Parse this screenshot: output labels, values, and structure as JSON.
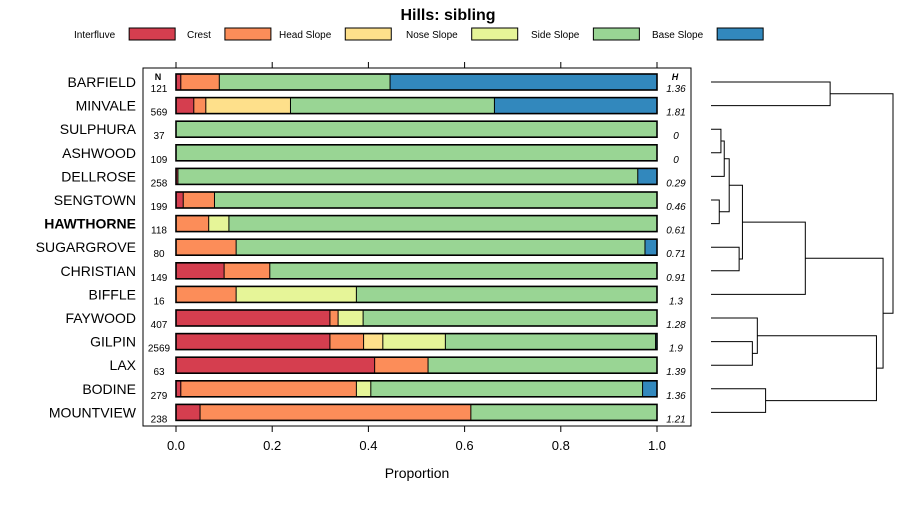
{
  "chart_data": {
    "type": "bar",
    "orientation": "horizontal",
    "stacked": true,
    "title": "Hills: sibling",
    "xlabel": "Proportion",
    "ylabel": "",
    "xlim": [
      0,
      1
    ],
    "xticks": [
      "0.0",
      "0.2",
      "0.4",
      "0.6",
      "0.8",
      "1.0"
    ],
    "n_header": "N",
    "h_header": "H",
    "highlight": "HAWTHORNE",
    "legend_position": "top",
    "series": [
      {
        "name": "Interfluve",
        "color": "#d53e4f"
      },
      {
        "name": "Crest",
        "color": "#fc8d59"
      },
      {
        "name": "Head Slope",
        "color": "#fee08b"
      },
      {
        "name": "Nose Slope",
        "color": "#e6f598"
      },
      {
        "name": "Side Slope",
        "color": "#99d594"
      },
      {
        "name": "Base Slope",
        "color": "#3288bd"
      }
    ],
    "rows": [
      {
        "name": "BARFIELD",
        "n": "121",
        "h": "1.36",
        "values": [
          0.01,
          0.08,
          0.0,
          0.0,
          0.355,
          0.555
        ]
      },
      {
        "name": "MINVALE",
        "n": "569",
        "h": "1.81",
        "values": [
          0.037,
          0.025,
          0.176,
          0.0,
          0.424,
          0.338
        ]
      },
      {
        "name": "SULPHURA",
        "n": "37",
        "h": "0",
        "values": [
          0.0,
          0.0,
          0.0,
          0.0,
          1.0,
          0.0
        ]
      },
      {
        "name": "ASHWOOD",
        "n": "109",
        "h": "0",
        "values": [
          0.0,
          0.0,
          0.0,
          0.0,
          1.0,
          0.0
        ]
      },
      {
        "name": "DELLROSE",
        "n": "258",
        "h": "0.29",
        "values": [
          0.004,
          0.0,
          0.0,
          0.0,
          0.956,
          0.04
        ]
      },
      {
        "name": "SENGTOWN",
        "n": "199",
        "h": "0.46",
        "values": [
          0.015,
          0.065,
          0.0,
          0.0,
          0.92,
          0.0
        ]
      },
      {
        "name": "HAWTHORNE",
        "n": "118",
        "h": "0.61",
        "values": [
          0.0,
          0.068,
          0.0,
          0.042,
          0.89,
          0.0
        ]
      },
      {
        "name": "SUGARGROVE",
        "n": "80",
        "h": "0.71",
        "values": [
          0.0,
          0.125,
          0.0,
          0.0,
          0.85,
          0.025
        ]
      },
      {
        "name": "CHRISTIAN",
        "n": "149",
        "h": "0.91",
        "values": [
          0.1,
          0.095,
          0.0,
          0.0,
          0.805,
          0.0
        ]
      },
      {
        "name": "BIFFLE",
        "n": "16",
        "h": "1.3",
        "values": [
          0.0,
          0.125,
          0.0,
          0.25,
          0.625,
          0.0
        ]
      },
      {
        "name": "FAYWOOD",
        "n": "407",
        "h": "1.28",
        "values": [
          0.32,
          0.017,
          0.0,
          0.052,
          0.611,
          0.0
        ]
      },
      {
        "name": "GILPIN",
        "n": "2569",
        "h": "1.9",
        "values": [
          0.32,
          0.07,
          0.04,
          0.13,
          0.437,
          0.003
        ]
      },
      {
        "name": "LAX",
        "n": "63",
        "h": "1.39",
        "values": [
          0.413,
          0.111,
          0.0,
          0.0,
          0.476,
          0.0
        ]
      },
      {
        "name": "BODINE",
        "n": "279",
        "h": "1.36",
        "values": [
          0.01,
          0.365,
          0.0,
          0.03,
          0.565,
          0.03
        ]
      },
      {
        "name": "MOUNTVIEW",
        "n": "238",
        "h": "1.21",
        "values": [
          0.05,
          0.563,
          0.0,
          0.0,
          0.387,
          0.0
        ]
      }
    ],
    "dendrogram": {
      "description": "hierarchical clustering of rows",
      "merges": [
        {
          "a": "BARFIELD",
          "b": "MINVALE",
          "height": 0.72
        },
        {
          "a": "SULPHURA",
          "b": "ASHWOOD",
          "height": 0.06
        },
        {
          "a": "merge:1",
          "b": "DELLROSE",
          "height": 0.08
        },
        {
          "a": "SENGTOWN",
          "b": "HAWTHORNE",
          "height": 0.05
        },
        {
          "a": "merge:2",
          "b": "merge:3",
          "height": 0.11
        },
        {
          "a": "SUGARGROVE",
          "b": "CHRISTIAN",
          "height": 0.17
        },
        {
          "a": "merge:4",
          "b": "merge:5",
          "height": 0.19
        },
        {
          "a": "merge:6",
          "b": "BIFFLE",
          "height": 0.57
        },
        {
          "a": "GILPIN",
          "b": "LAX",
          "height": 0.25
        },
        {
          "a": "FAYWOOD",
          "b": "merge:8",
          "height": 0.28
        },
        {
          "a": "BODINE",
          "b": "MOUNTVIEW",
          "height": 0.33
        },
        {
          "a": "merge:9",
          "b": "merge:10",
          "height": 1.0
        },
        {
          "a": "merge:7",
          "b": "merge:11",
          "height": 1.04
        },
        {
          "a": "merge:0",
          "b": "merge:12",
          "height": 1.1
        }
      ]
    }
  }
}
